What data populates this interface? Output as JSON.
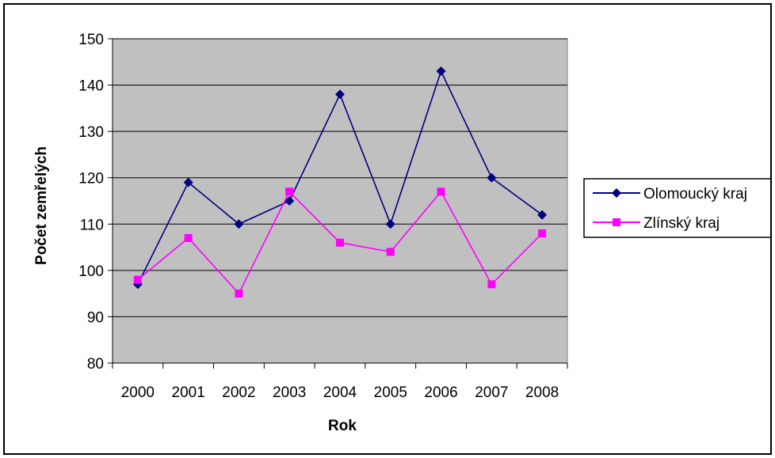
{
  "chart_data": {
    "type": "line",
    "title": "",
    "xlabel": "Rok",
    "ylabel": "Počet zemřelých",
    "categories": [
      "2000",
      "2001",
      "2002",
      "2003",
      "2004",
      "2005",
      "2006",
      "2007",
      "2008"
    ],
    "ylim": [
      80,
      150
    ],
    "yticks": [
      80,
      90,
      100,
      110,
      120,
      130,
      140,
      150
    ],
    "grid": true,
    "legend_position": "right",
    "plot_background": "#c0c0c0",
    "series": [
      {
        "name": "Olomoucký kraj",
        "color": "#000080",
        "marker": "diamond",
        "values": [
          97,
          119,
          110,
          115,
          138,
          110,
          143,
          120,
          112
        ]
      },
      {
        "name": "Zlínský kraj",
        "color": "#ff00ff",
        "marker": "square",
        "values": [
          98,
          107,
          95,
          117,
          106,
          104,
          117,
          97,
          108
        ]
      }
    ]
  }
}
